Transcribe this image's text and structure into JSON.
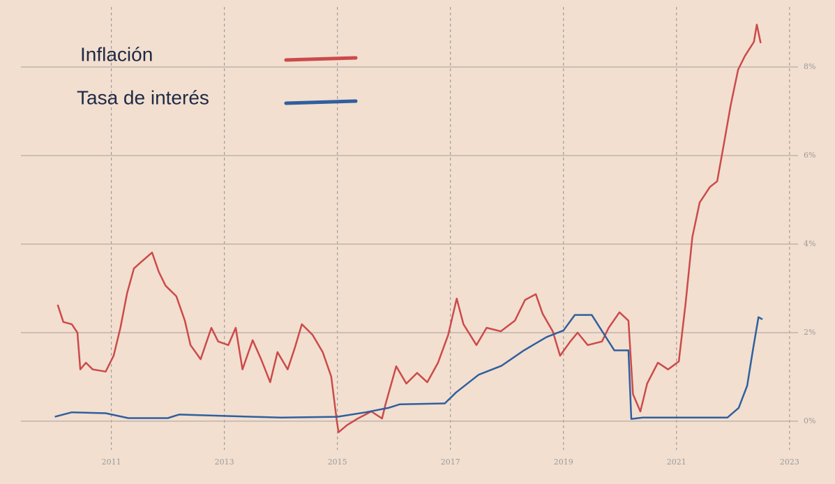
{
  "chart_data": {
    "type": "line",
    "legend_position": "upper left",
    "grid": true,
    "xlim": [
      2009.4,
      2023.15
    ],
    "ylim": [
      -0.6,
      9.2
    ],
    "xticks": [
      2011,
      2013,
      2015,
      2017,
      2019,
      2021,
      2023
    ],
    "yticks": [
      {
        "value": 0,
        "label": "0%"
      },
      {
        "value": 2,
        "label": "2%"
      },
      {
        "value": 4,
        "label": "4%"
      },
      {
        "value": 6,
        "label": "6%"
      },
      {
        "value": 8,
        "label": "8%"
      }
    ],
    "series": [
      {
        "name": "Inflación",
        "color": "#cc4a4a",
        "x": [
          2010.05,
          2010.15,
          2010.3,
          2010.4,
          2010.45,
          2010.55,
          2010.67,
          2010.9,
          2011.04,
          2011.16,
          2011.28,
          2011.4,
          2011.53,
          2011.72,
          2011.84,
          2011.96,
          2012.15,
          2012.3,
          2012.4,
          2012.58,
          2012.77,
          2012.89,
          2013.07,
          2013.2,
          2013.32,
          2013.5,
          2013.65,
          2013.81,
          2013.94,
          2014.12,
          2014.25,
          2014.37,
          2014.56,
          2014.74,
          2014.89,
          2014.99,
          2015.02,
          2015.17,
          2015.36,
          2015.6,
          2015.79,
          2015.85,
          2016.04,
          2016.22,
          2016.41,
          2016.59,
          2016.78,
          2016.96,
          2017.11,
          2017.23,
          2017.46,
          2017.64,
          2017.89,
          2018.14,
          2018.32,
          2018.51,
          2018.63,
          2018.81,
          2018.94,
          2019.12,
          2019.25,
          2019.43,
          2019.68,
          2019.8,
          2019.99,
          2020.15,
          2020.23,
          2020.36,
          2020.48,
          2020.67,
          2020.85,
          2021.04,
          2021.16,
          2021.28,
          2021.41,
          2021.59,
          2021.72,
          2021.84,
          2021.96,
          2022.09,
          2022.21,
          2022.37,
          2022.42,
          2022.49
        ],
        "values": [
          2.63,
          2.24,
          2.19,
          2.0,
          1.17,
          1.32,
          1.17,
          1.12,
          1.48,
          2.11,
          2.9,
          3.45,
          3.6,
          3.81,
          3.37,
          3.06,
          2.82,
          2.27,
          1.72,
          1.4,
          2.11,
          1.8,
          1.72,
          2.11,
          1.17,
          1.83,
          1.4,
          0.88,
          1.56,
          1.17,
          1.67,
          2.19,
          1.95,
          1.56,
          1.01,
          0.0,
          -0.25,
          -0.09,
          0.06,
          0.22,
          0.06,
          0.38,
          1.24,
          0.85,
          1.09,
          0.88,
          1.32,
          1.95,
          2.77,
          2.19,
          1.72,
          2.11,
          2.03,
          2.27,
          2.74,
          2.87,
          2.43,
          2.03,
          1.48,
          1.8,
          2.0,
          1.72,
          1.8,
          2.11,
          2.46,
          2.27,
          0.61,
          0.22,
          0.85,
          1.32,
          1.17,
          1.35,
          2.66,
          4.16,
          4.94,
          5.29,
          5.42,
          6.28,
          7.15,
          7.94,
          8.25,
          8.57,
          8.96,
          8.54
        ]
      },
      {
        "name": "Tasa de interés",
        "color": "#2f5f9e",
        "x": [
          2010.0,
          2010.3,
          2010.9,
          2011.3,
          2012.0,
          2012.2,
          2013.5,
          2014.0,
          2015.0,
          2015.5,
          2015.9,
          2016.1,
          2016.9,
          2017.1,
          2017.5,
          2017.9,
          2018.3,
          2018.7,
          2019.0,
          2019.2,
          2019.5,
          2019.7,
          2019.9,
          2020.15,
          2020.2,
          2020.4,
          2021.0,
          2021.9,
          2022.1,
          2022.25,
          2022.35,
          2022.45,
          2022.52
        ],
        "values": [
          0.1,
          0.2,
          0.18,
          0.07,
          0.07,
          0.15,
          0.1,
          0.08,
          0.1,
          0.2,
          0.3,
          0.38,
          0.4,
          0.65,
          1.05,
          1.25,
          1.6,
          1.9,
          2.05,
          2.4,
          2.4,
          2.0,
          1.6,
          1.6,
          0.05,
          0.08,
          0.08,
          0.08,
          0.3,
          0.8,
          1.6,
          2.35,
          2.3
        ]
      }
    ]
  }
}
